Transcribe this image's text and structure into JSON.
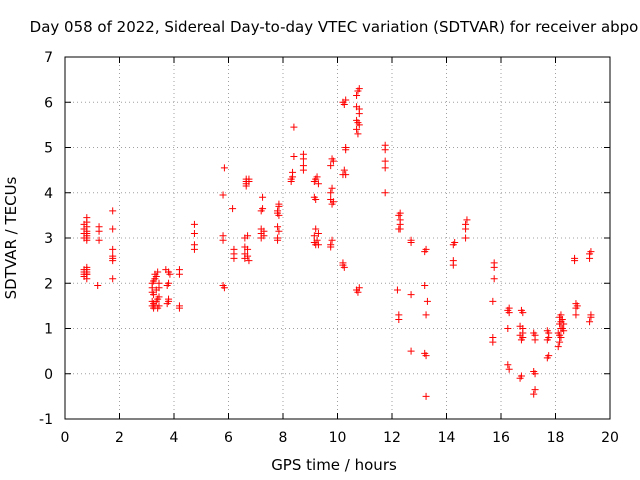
{
  "chart_data": {
    "type": "scatter",
    "title": "Day 058 of 2022, Sidereal Day-to-day VTEC variation (SDTVAR) for receiver abpo",
    "xlabel": "GPS time / hours",
    "ylabel": "SDTVAR / TECUs",
    "xlim": [
      0,
      20
    ],
    "ylim": [
      -1,
      7
    ],
    "xticks": [
      0,
      2,
      4,
      6,
      8,
      10,
      12,
      14,
      16,
      18,
      20
    ],
    "yticks": [
      -1,
      0,
      1,
      2,
      3,
      4,
      5,
      6,
      7
    ],
    "grid": true,
    "marker": "+",
    "color": "#ff0000",
    "series": [
      {
        "name": "SDTVAR",
        "x": [
          0.7,
          0.7,
          0.7,
          0.7,
          0.7,
          0.7,
          0.7,
          0.7,
          0.8,
          0.8,
          0.8,
          0.8,
          0.8,
          0.8,
          0.8,
          0.8,
          0.8,
          0.8,
          0.8,
          0.8,
          0.8,
          0.8,
          1.2,
          1.25,
          1.25,
          1.25,
          1.75,
          1.75,
          1.75,
          1.75,
          1.75,
          1.75,
          1.75,
          3.2,
          3.2,
          3.2,
          3.2,
          3.2,
          3.25,
          3.25,
          3.25,
          3.25,
          3.3,
          3.3,
          3.3,
          3.35,
          3.35,
          3.35,
          3.4,
          3.4,
          3.4,
          3.45,
          3.45,
          3.45,
          3.45,
          3.7,
          3.75,
          3.75,
          3.8,
          3.8,
          3.8,
          3.8,
          3.85,
          4.2,
          4.2,
          4.2,
          4.2,
          4.75,
          4.75,
          4.75,
          4.75,
          5.8,
          5.8,
          5.8,
          5.8,
          5.85,
          5.85,
          6.15,
          6.2,
          6.2,
          6.2,
          6.6,
          6.6,
          6.6,
          6.6,
          6.65,
          6.65,
          6.65,
          6.65,
          6.7,
          6.7,
          6.7,
          6.75,
          6.75,
          6.75,
          7.2,
          7.2,
          7.2,
          7.2,
          7.25,
          7.25,
          7.3,
          7.3,
          7.8,
          7.8,
          7.8,
          7.8,
          7.8,
          7.85,
          7.85,
          7.85,
          7.85,
          8.3,
          8.3,
          8.35,
          8.35,
          8.4,
          8.4,
          8.75,
          8.75,
          8.75,
          8.75,
          9.15,
          9.15,
          9.15,
          9.15,
          9.2,
          9.2,
          9.2,
          9.2,
          9.25,
          9.25,
          9.3,
          9.3,
          9.3,
          9.75,
          9.75,
          9.75,
          9.75,
          9.75,
          9.8,
          9.8,
          9.8,
          9.8,
          9.85,
          9.85,
          10.2,
          10.2,
          10.2,
          10.2,
          10.25,
          10.25,
          10.25,
          10.3,
          10.3,
          10.3,
          10.3,
          10.7,
          10.7,
          10.7,
          10.7,
          10.7,
          10.75,
          10.75,
          10.75,
          10.75,
          10.8,
          10.8,
          10.8,
          10.8,
          10.8,
          11.75,
          11.75,
          11.75,
          11.75,
          11.75,
          12.2,
          12.25,
          12.25,
          12.25,
          12.25,
          12.3,
          12.3,
          12.3,
          12.3,
          12.7,
          12.7,
          12.7,
          12.7,
          13.2,
          13.2,
          13.2,
          13.25,
          13.25,
          13.25,
          13.25,
          13.3,
          14.25,
          14.25,
          14.25,
          14.3,
          14.7,
          14.7,
          14.7,
          14.75,
          15.7,
          15.7,
          15.7,
          15.75,
          15.75,
          15.75,
          16.25,
          16.25,
          16.25,
          16.3,
          16.3,
          16.3,
          16.7,
          16.7,
          16.7,
          16.75,
          16.75,
          16.75,
          16.8,
          16.8,
          16.8,
          16.8,
          17.2,
          17.2,
          17.2,
          17.25,
          17.25,
          17.25,
          17.25,
          17.7,
          17.7,
          17.7,
          17.75,
          17.75,
          17.75,
          18.1,
          18.1,
          18.15,
          18.15,
          18.15,
          18.15,
          18.2,
          18.2,
          18.2,
          18.2,
          18.25,
          18.25,
          18.3,
          18.3,
          18.7,
          18.7,
          18.75,
          18.75,
          18.75,
          18.8,
          19.25,
          19.25,
          19.25,
          19.3,
          19.3,
          19.3
        ],
        "y": [
          2.2,
          2.3,
          3.0,
          3.1,
          3.2,
          3.3,
          2.15,
          2.25,
          2.1,
          2.2,
          2.3,
          3.05,
          3.15,
          3.25,
          3.35,
          3.45,
          2.25,
          2.35,
          3.0,
          2.95,
          3.1,
          2.2,
          1.95,
          2.95,
          3.15,
          3.25,
          2.1,
          2.5,
          2.6,
          2.75,
          3.2,
          3.6,
          2.55,
          1.5,
          1.6,
          1.8,
          1.9,
          2.0,
          1.45,
          1.55,
          1.75,
          2.05,
          1.5,
          2.1,
          2.2,
          1.6,
          1.85,
          2.15,
          1.45,
          1.65,
          2.25,
          1.5,
          1.7,
          1.9,
          2.0,
          2.3,
          1.55,
          1.95,
          1.6,
          1.65,
          2.0,
          2.25,
          2.2,
          1.45,
          1.5,
          2.2,
          2.3,
          2.75,
          2.85,
          3.1,
          3.3,
          1.95,
          2.95,
          3.05,
          3.95,
          4.55,
          1.9,
          3.65,
          2.55,
          2.65,
          2.75,
          2.55,
          2.65,
          2.8,
          3.0,
          4.15,
          4.25,
          4.3,
          4.2,
          2.6,
          2.75,
          3.05,
          4.25,
          4.3,
          2.5,
          3.0,
          3.1,
          3.2,
          3.6,
          3.65,
          3.9,
          3.15,
          3.05,
          2.95,
          3.0,
          3.25,
          3.55,
          3.6,
          3.7,
          3.15,
          3.5,
          3.75,
          4.3,
          4.25,
          4.35,
          4.45,
          4.8,
          5.45,
          4.5,
          4.6,
          4.75,
          4.85,
          2.9,
          3.05,
          3.9,
          4.25,
          2.85,
          3.2,
          3.85,
          4.3,
          2.95,
          4.35,
          2.85,
          3.1,
          4.2,
          2.8,
          2.85,
          3.85,
          4.0,
          4.6,
          2.95,
          3.75,
          4.1,
          4.75,
          3.8,
          4.7,
          2.4,
          2.45,
          4.4,
          6.0,
          2.35,
          4.5,
          5.95,
          4.95,
          5.0,
          4.4,
          6.05,
          1.85,
          5.4,
          5.6,
          5.9,
          6.15,
          1.8,
          5.3,
          5.55,
          6.25,
          1.9,
          5.5,
          5.75,
          5.85,
          6.3,
          4.0,
          4.55,
          4.7,
          4.95,
          5.05,
          1.85,
          1.2,
          1.3,
          3.2,
          3.5,
          3.2,
          3.3,
          3.4,
          3.55,
          0.5,
          1.75,
          2.9,
          2.95,
          0.45,
          1.95,
          2.7,
          -0.5,
          0.4,
          1.3,
          2.75,
          1.6,
          2.4,
          2.5,
          2.85,
          2.9,
          3.0,
          3.2,
          3.3,
          3.4,
          0.7,
          0.8,
          1.6,
          2.1,
          2.35,
          2.45,
          0.2,
          1.0,
          1.4,
          0.1,
          1.35,
          1.45,
          -0.1,
          0.85,
          1.05,
          -0.05,
          0.75,
          1.4,
          0.8,
          0.9,
          1.0,
          1.35,
          -0.45,
          0.05,
          0.9,
          -0.35,
          0.0,
          0.75,
          0.85,
          0.35,
          0.75,
          0.95,
          0.4,
          0.8,
          0.9,
          0.6,
          0.9,
          0.7,
          0.85,
          1.1,
          1.25,
          0.8,
          1.0,
          1.15,
          1.3,
          1.0,
          1.2,
          0.95,
          1.1,
          2.5,
          2.55,
          1.3,
          1.45,
          1.55,
          1.5,
          2.55,
          2.65,
          1.15,
          1.25,
          1.3,
          2.7
        ]
      }
    ]
  }
}
